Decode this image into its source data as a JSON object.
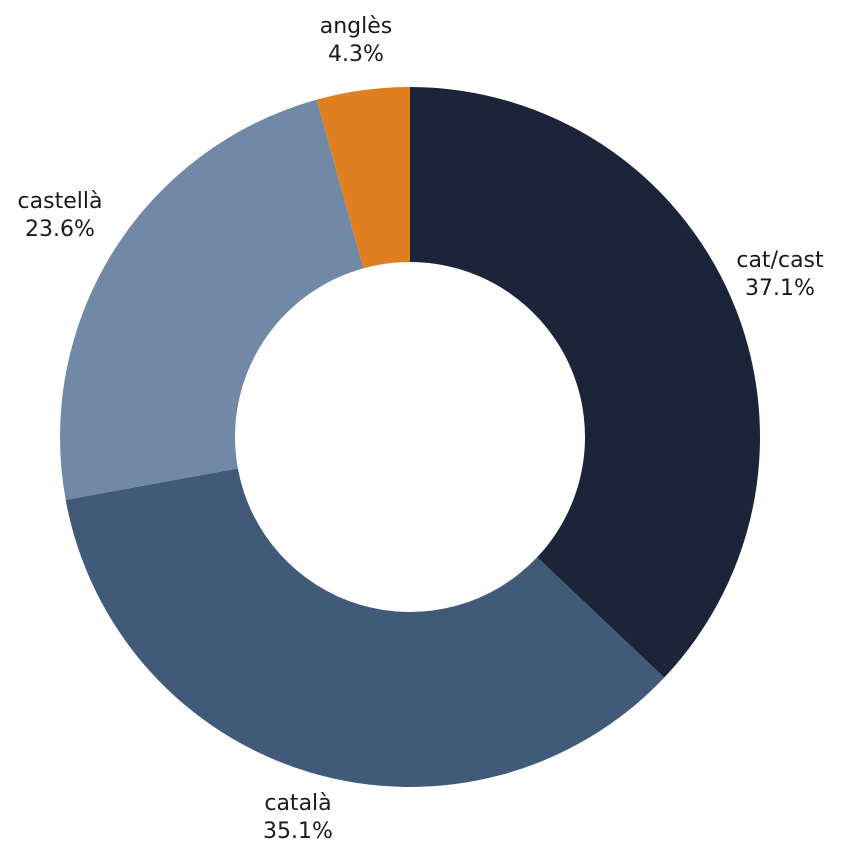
{
  "chart_data": {
    "type": "pie",
    "variant": "donut",
    "title": "",
    "start_category": "cat/cast",
    "direction": "clockwise",
    "categories": [
      "cat/cast",
      "català",
      "castellà",
      "anglès"
    ],
    "values": [
      37.1,
      35.1,
      23.6,
      4.3
    ],
    "value_labels": [
      "37.1%",
      "35.1%",
      "23.6%",
      "4.3%"
    ],
    "colors": [
      "#1b2438",
      "#405a78",
      "#7189a6",
      "#e07e22"
    ],
    "legend": "none",
    "labels_position": "outside"
  }
}
